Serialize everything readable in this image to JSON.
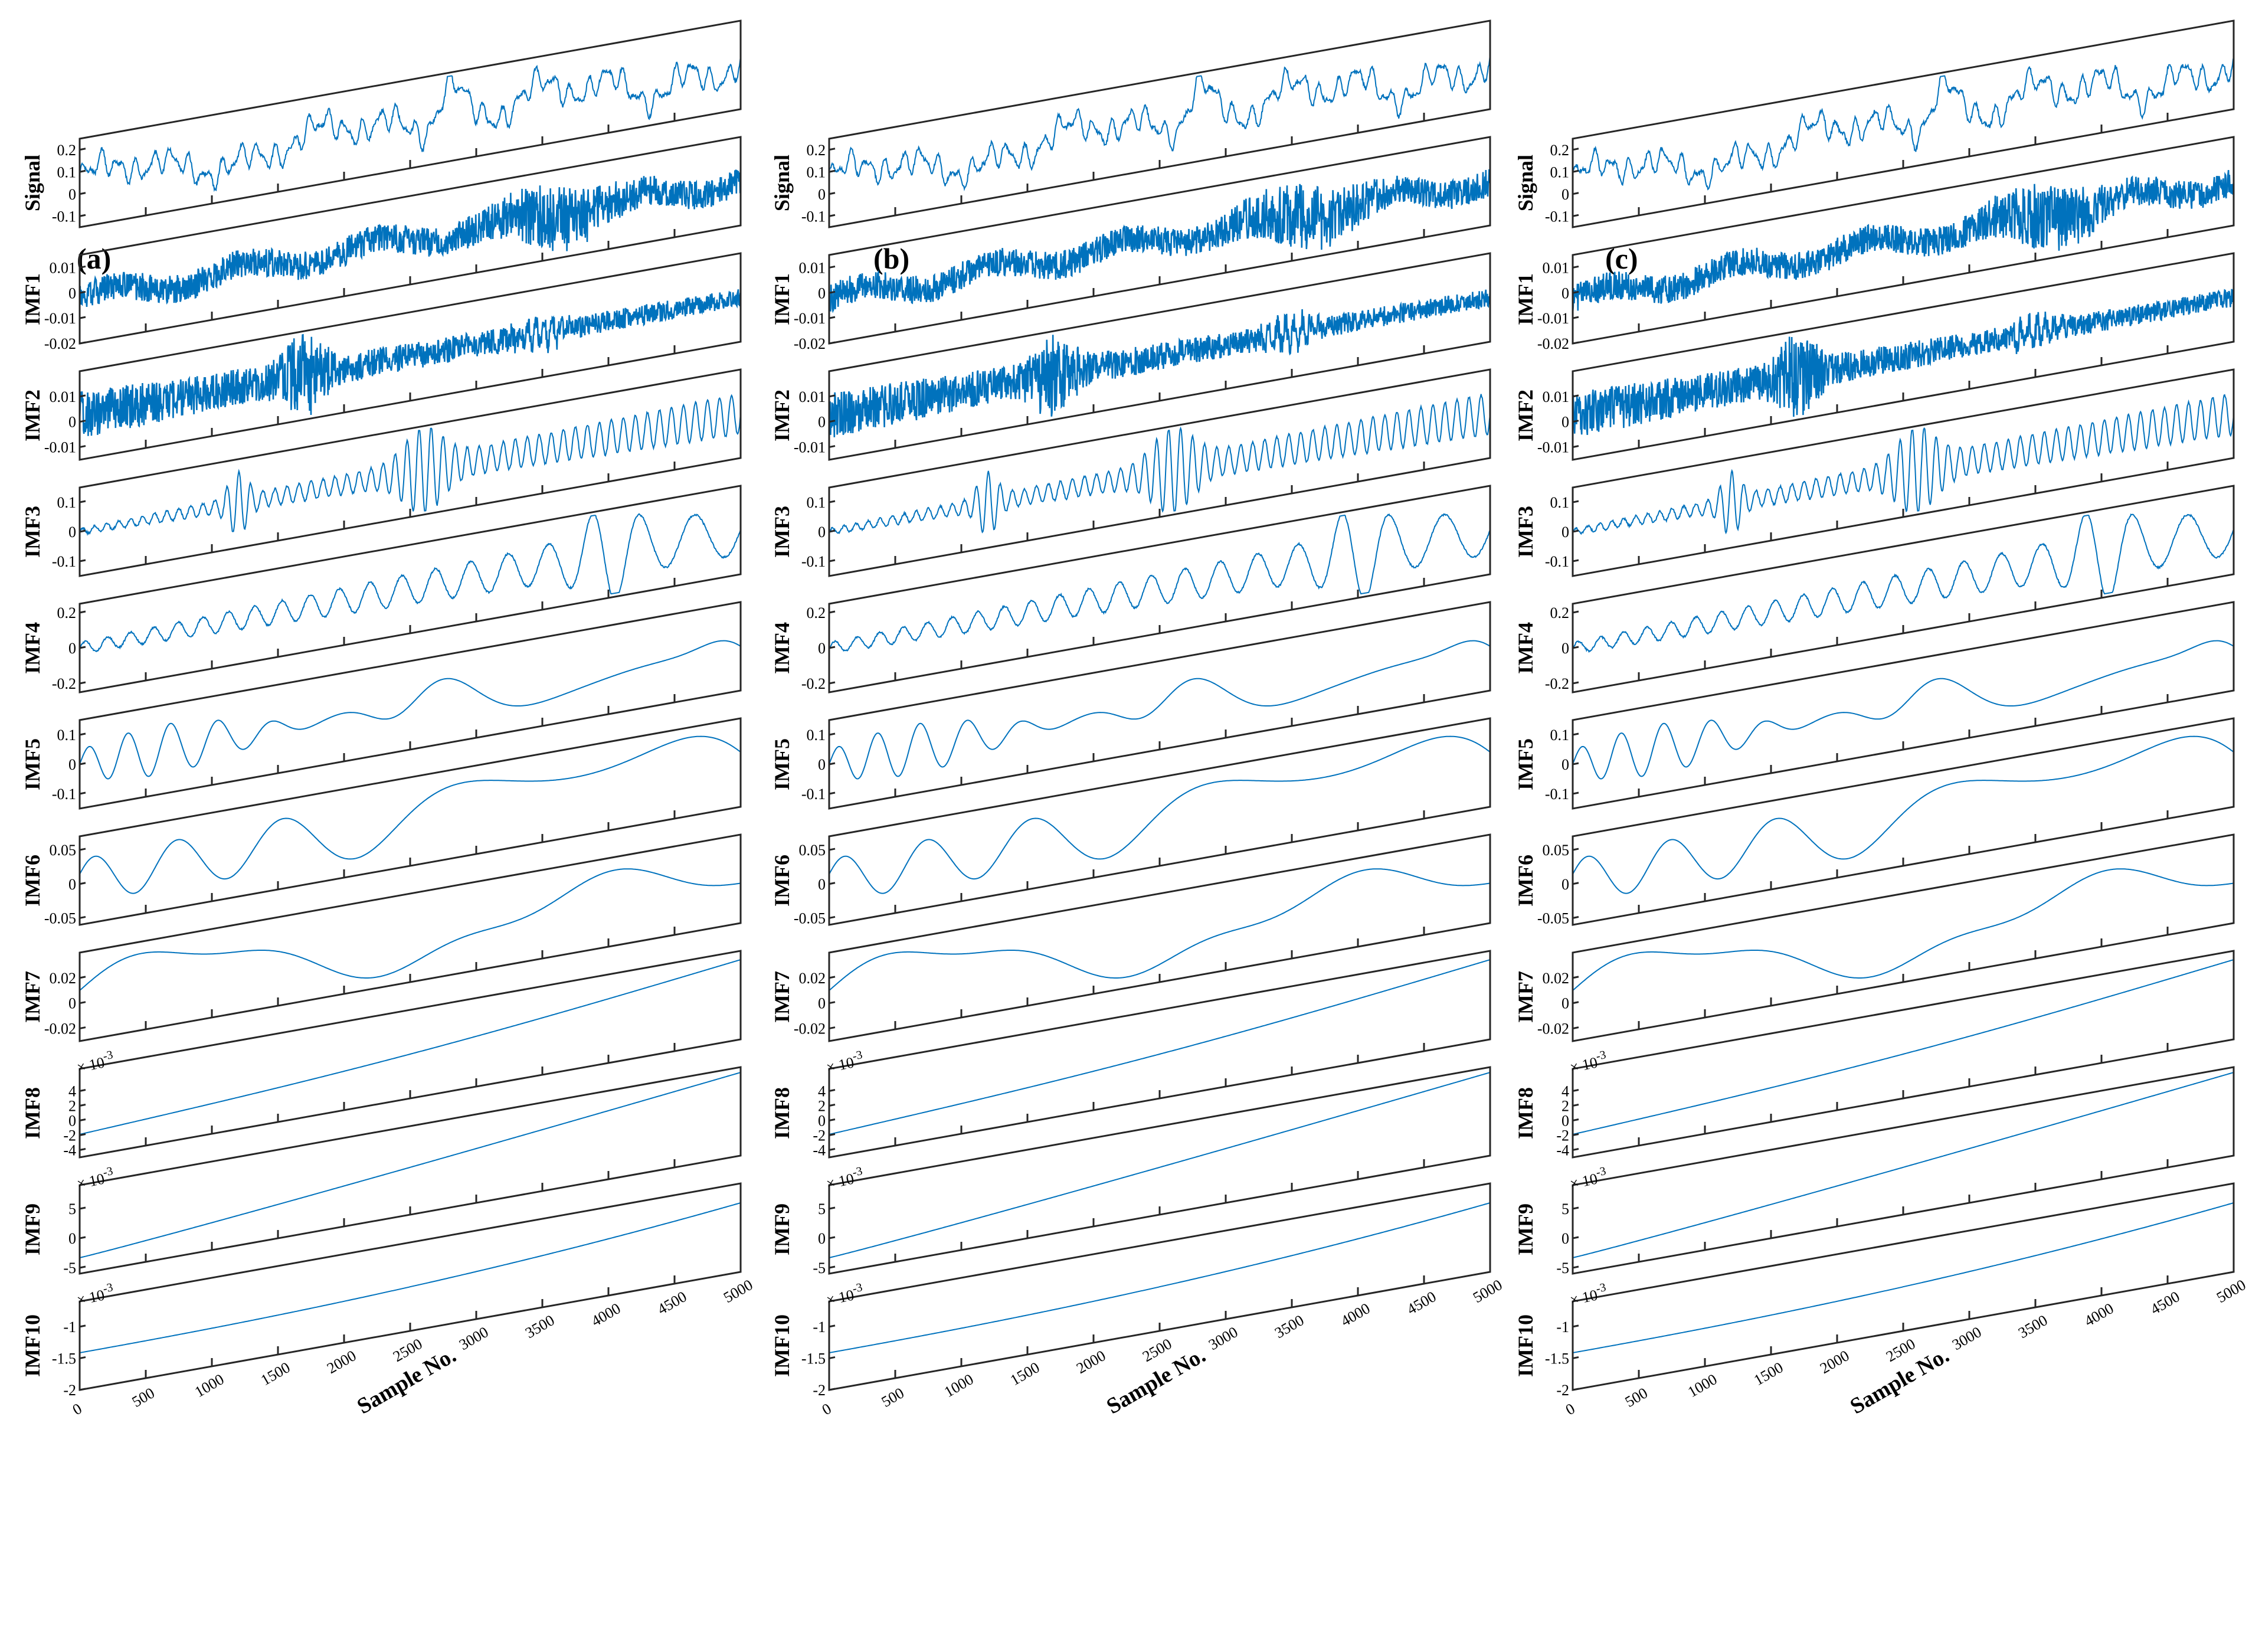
{
  "colors": {
    "series": "#0072BD",
    "axes": "#262626"
  },
  "panels": [
    {
      "label": "(a)"
    },
    {
      "label": "(b)"
    },
    {
      "label": "(c)"
    }
  ],
  "chart_data": {
    "type": "line",
    "title": "",
    "xlabel": "Sample No.",
    "x_range": [
      0,
      5000
    ],
    "x_ticks": [
      "0",
      "500",
      "1000",
      "1500",
      "2000",
      "2500",
      "3000",
      "3500",
      "4000",
      "4500",
      "5000"
    ],
    "grid": false,
    "layout": "waterfall-stack",
    "rows": [
      {
        "label": "Signal",
        "ylim": [
          -0.15,
          0.25
        ],
        "yticks": [
          "0.2",
          "0.1",
          "0",
          "-0.1"
        ],
        "yvals": [
          0.2,
          0.1,
          0,
          -0.1
        ],
        "exponent": "",
        "kind": "signal"
      },
      {
        "label": "IMF1",
        "ylim": [
          -0.02,
          0.015
        ],
        "yticks": [
          "0.01",
          "0",
          "-0.01",
          "-0.02"
        ],
        "yvals": [
          0.01,
          0,
          -0.01,
          -0.02
        ],
        "exponent": "",
        "kind": "noise"
      },
      {
        "label": "IMF2",
        "ylim": [
          -0.015,
          0.02
        ],
        "yticks": [
          "0.01",
          "0",
          "-0.01"
        ],
        "yvals": [
          0.01,
          0,
          -0.01
        ],
        "exponent": "",
        "kind": "noise2"
      },
      {
        "label": "IMF3",
        "ylim": [
          -0.15,
          0.15
        ],
        "yticks": [
          "0.1",
          "0",
          "-0.1"
        ],
        "yvals": [
          0.1,
          0,
          -0.1
        ],
        "exponent": "",
        "kind": "burst"
      },
      {
        "label": "IMF4",
        "ylim": [
          -0.25,
          0.25
        ],
        "yticks": [
          "0.2",
          "0",
          "-0.2"
        ],
        "yvals": [
          0.2,
          0,
          -0.2
        ],
        "exponent": "",
        "kind": "osc_fast"
      },
      {
        "label": "IMF5",
        "ylim": [
          -0.15,
          0.15
        ],
        "yticks": [
          "0.1",
          "0",
          "-0.1"
        ],
        "yvals": [
          0.1,
          0,
          -0.1
        ],
        "exponent": "",
        "kind": "osc_mid"
      },
      {
        "label": "IMF6",
        "ylim": [
          -0.06,
          0.07
        ],
        "yticks": [
          "0.05",
          "0",
          "-0.05"
        ],
        "yvals": [
          0.05,
          0,
          -0.05
        ],
        "exponent": "",
        "kind": "osc_slow"
      },
      {
        "label": "IMF7",
        "ylim": [
          -0.03,
          0.04
        ],
        "yticks": [
          "0.02",
          "0",
          "-0.02"
        ],
        "yvals": [
          0.02,
          0,
          -0.02
        ],
        "exponent": "",
        "kind": "wave"
      },
      {
        "label": "IMF8",
        "ylim": [
          -5,
          7
        ],
        "yticks": [
          "4",
          "2",
          "0",
          "-2",
          "-4"
        ],
        "yvals": [
          4,
          2,
          0,
          -2,
          -4
        ],
        "exponent": "× 10",
        "exponent_power": "-3",
        "kind": "rise"
      },
      {
        "label": "IMF9",
        "ylim": [
          -6,
          9
        ],
        "yticks": [
          "5",
          "0",
          "-5"
        ],
        "yvals": [
          5,
          0,
          -5
        ],
        "exponent": "× 10",
        "exponent_power": "-3",
        "kind": "rise2"
      },
      {
        "label": "IMF10",
        "ylim": [
          -2,
          -0.6
        ],
        "yticks": [
          "-1",
          "-1.5",
          "-2"
        ],
        "yvals": [
          -1,
          -1.5,
          -2
        ],
        "exponent": "× 10",
        "exponent_power": "-3",
        "kind": "curve"
      }
    ]
  }
}
